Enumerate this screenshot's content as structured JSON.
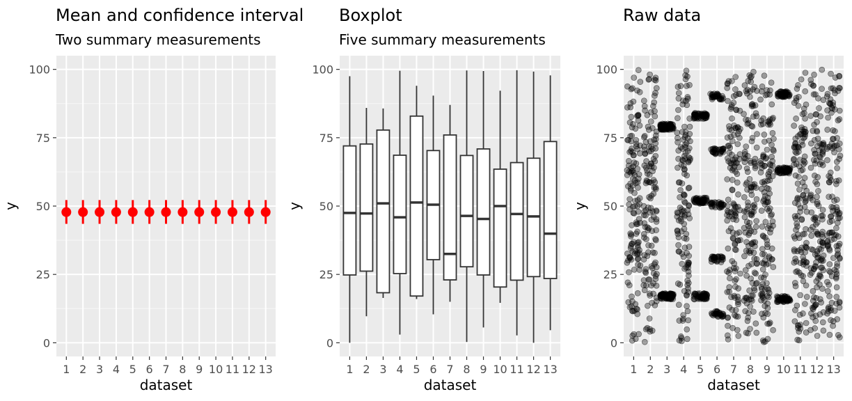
{
  "chart_data": [
    {
      "type": "pointrange",
      "title": "Mean and confidence interval",
      "subtitle": "Two summary measurements",
      "xlabel": "dataset",
      "ylabel": "y",
      "categories": [
        "1",
        "2",
        "3",
        "4",
        "5",
        "6",
        "7",
        "8",
        "9",
        "10",
        "11",
        "12",
        "13"
      ],
      "mean": [
        47.8,
        47.8,
        47.8,
        47.8,
        47.8,
        47.8,
        47.8,
        47.8,
        47.8,
        47.8,
        47.8,
        47.8,
        47.8
      ],
      "ci_low": [
        43.5,
        43.5,
        43.5,
        43.5,
        43.5,
        43.5,
        43.5,
        43.5,
        43.5,
        43.5,
        43.5,
        43.5,
        43.5
      ],
      "ci_high": [
        52.2,
        52.2,
        52.2,
        52.2,
        52.2,
        52.2,
        52.2,
        52.2,
        52.2,
        52.2,
        52.2,
        52.2,
        52.2
      ],
      "color": "#ff0000",
      "yticks": [
        0,
        25,
        50,
        75,
        100
      ],
      "ylim": [
        -5,
        105
      ]
    },
    {
      "type": "boxplot",
      "title": "Boxplot",
      "subtitle": "Five summary measurements",
      "xlabel": "dataset",
      "ylabel": "y",
      "categories": [
        "1",
        "2",
        "3",
        "4",
        "5",
        "6",
        "7",
        "8",
        "9",
        "10",
        "11",
        "12",
        "13"
      ],
      "boxes": [
        {
          "min": 0.0,
          "q1": 24.8,
          "median": 47.5,
          "q3": 72.0,
          "max": 97.5
        },
        {
          "min": 9.7,
          "q1": 26.2,
          "median": 47.3,
          "q3": 72.7,
          "max": 85.9
        },
        {
          "min": 16.4,
          "q1": 18.3,
          "median": 51.0,
          "q3": 77.8,
          "max": 85.7
        },
        {
          "min": 3.0,
          "q1": 25.3,
          "median": 45.9,
          "q3": 68.6,
          "max": 99.5
        },
        {
          "min": 16.0,
          "q1": 17.1,
          "median": 51.3,
          "q3": 82.9,
          "max": 94.0
        },
        {
          "min": 10.4,
          "q1": 30.4,
          "median": 50.5,
          "q3": 70.3,
          "max": 90.4
        },
        {
          "min": 15.0,
          "q1": 23.0,
          "median": 32.5,
          "q3": 76.0,
          "max": 87.0
        },
        {
          "min": 0.3,
          "q1": 27.8,
          "median": 46.4,
          "q3": 68.5,
          "max": 99.6
        },
        {
          "min": 5.6,
          "q1": 24.8,
          "median": 45.3,
          "q3": 70.9,
          "max": 99.4
        },
        {
          "min": 14.6,
          "q1": 20.4,
          "median": 50.0,
          "q3": 63.5,
          "max": 92.2
        },
        {
          "min": 2.7,
          "q1": 22.9,
          "median": 47.1,
          "q3": 65.9,
          "max": 99.7
        },
        {
          "min": 0.0,
          "q1": 24.2,
          "median": 46.2,
          "q3": 67.5,
          "max": 99.2
        },
        {
          "min": 4.6,
          "q1": 23.5,
          "median": 39.9,
          "q3": 73.6,
          "max": 97.8
        }
      ],
      "yticks": [
        0,
        25,
        50,
        75,
        100
      ],
      "ylim": [
        -5,
        105
      ]
    },
    {
      "type": "scatter",
      "title": "Raw data",
      "subtitle": "",
      "xlabel": "dataset",
      "ylabel": "y",
      "categories": [
        "1",
        "2",
        "3",
        "4",
        "5",
        "6",
        "7",
        "8",
        "9",
        "10",
        "11",
        "12",
        "13"
      ],
      "points_per_dataset": 142,
      "jitter": "horizontal",
      "clusters": [
        {
          "dataset": "3",
          "y_values": [
            79,
            17
          ]
        },
        {
          "dataset": "5",
          "y_values": [
            83,
            52,
            17
          ]
        },
        {
          "dataset": "6",
          "y_values": [
            90,
            70,
            50.5,
            30.5,
            10.5
          ]
        },
        {
          "dataset": "10",
          "y_values": [
            63,
            91,
            16
          ]
        }
      ],
      "yticks": [
        0,
        25,
        50,
        75,
        100
      ],
      "ylim": [
        -5,
        105
      ]
    }
  ]
}
